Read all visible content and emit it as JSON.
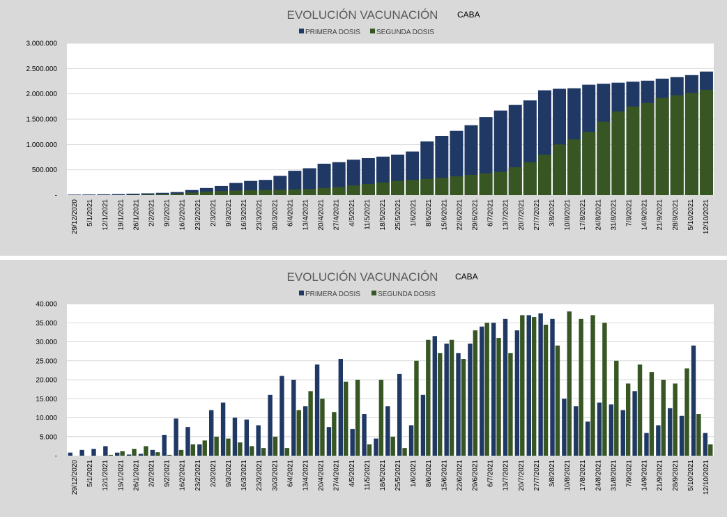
{
  "colors": {
    "primera": "#1f3864",
    "segunda": "#375623",
    "panel_bg": "#d9d9d9",
    "plot_bg": "#ffffff"
  },
  "chart_data": [
    {
      "type": "bar",
      "variant": "cumulative-overlay",
      "title": "EVOLUCIÓN VACUNACIÓN",
      "subtitle": "CABA",
      "legend": [
        "PRIMERA DOSIS",
        "SEGUNDA DOSIS"
      ],
      "legend_position": "top-center",
      "ylim": [
        0,
        3000000
      ],
      "yticks": [
        "-",
        "500.000",
        "1.000.000",
        "1.500.000",
        "2.000.000",
        "2.500.000",
        "3.000.000"
      ],
      "xticks": [
        "29/12/2020",
        "5/1/2021",
        "12/1/2021",
        "19/1/2021",
        "26/1/2021",
        "2/2/2021",
        "9/2/2021",
        "16/2/2021",
        "23/2/2021",
        "2/3/2021",
        "9/3/2021",
        "16/3/2021",
        "23/3/2021",
        "30/3/2021",
        "6/4/2021",
        "13/4/2021",
        "20/4/2021",
        "27/4/2021",
        "4/5/2021",
        "11/5/2021",
        "18/5/2021",
        "25/5/2021",
        "1/6/2021",
        "8/6/2021",
        "15/6/2021",
        "22/6/2021",
        "29/6/2021",
        "6/7/2021",
        "13/7/2021",
        "20/7/2021",
        "27/7/2021",
        "3/8/2021",
        "10/8/2021",
        "17/8/2021",
        "24/8/2021",
        "31/8/2021",
        "7/9/2021",
        "14/9/2021",
        "21/9/2021",
        "28/9/2021",
        "5/10/2021",
        "12/10/2021"
      ],
      "grid": true,
      "series": [
        {
          "name": "PRIMERA DOSIS",
          "values": [
            10000,
            12000,
            15000,
            20000,
            28000,
            35000,
            45000,
            60000,
            100000,
            140000,
            180000,
            240000,
            280000,
            300000,
            380000,
            480000,
            530000,
            620000,
            650000,
            700000,
            730000,
            760000,
            800000,
            860000,
            1060000,
            1170000,
            1270000,
            1380000,
            1540000,
            1670000,
            1780000,
            1870000,
            2070000,
            2100000,
            2110000,
            2180000,
            2200000,
            2220000,
            2240000,
            2260000,
            2300000,
            2330000,
            2370000,
            2440000
          ]
        },
        {
          "name": "SEGUNDA DOSIS",
          "values": [
            0,
            0,
            500,
            1000,
            5000,
            10000,
            20000,
            30000,
            50000,
            70000,
            80000,
            90000,
            95000,
            100000,
            105000,
            110000,
            120000,
            140000,
            160000,
            190000,
            220000,
            250000,
            280000,
            300000,
            320000,
            340000,
            370000,
            400000,
            430000,
            460000,
            550000,
            650000,
            800000,
            1000000,
            1100000,
            1250000,
            1450000,
            1650000,
            1750000,
            1820000,
            1920000,
            1970000,
            2020000,
            2080000
          ]
        }
      ]
    },
    {
      "type": "bar",
      "variant": "daily",
      "title": "EVOLUCIÓN VACUNACIÓN",
      "subtitle": "CABA",
      "legend": [
        "PRIMERA DOSIS",
        "SEGUNDA DOSIS"
      ],
      "legend_position": "top-center",
      "ylim": [
        0,
        40000
      ],
      "yticks": [
        "-",
        "5.000",
        "10.000",
        "15.000",
        "20.000",
        "25.000",
        "30.000",
        "35.000",
        "40.000"
      ],
      "xticks": [
        "29/12/2020",
        "5/1/2021",
        "12/1/2021",
        "19/1/2021",
        "26/1/2021",
        "2/2/2021",
        "9/2/2021",
        "16/2/2021",
        "23/2/2021",
        "2/3/2021",
        "9/3/2021",
        "16/3/2021",
        "23/3/2021",
        "30/3/2021",
        "6/4/2021",
        "13/4/2021",
        "20/4/2021",
        "27/4/2021",
        "4/5/2021",
        "11/5/2021",
        "18/5/2021",
        "25/5/2021",
        "1/6/2021",
        "8/6/2021",
        "15/6/2021",
        "22/6/2021",
        "29/6/2021",
        "6/7/2021",
        "13/7/2021",
        "20/7/2021",
        "27/7/2021",
        "3/8/2021",
        "10/8/2021",
        "17/8/2021",
        "24/8/2021",
        "31/8/2021",
        "7/9/2021",
        "14/9/2021",
        "21/9/2021",
        "28/9/2021",
        "5/10/2021",
        "12/10/2021"
      ],
      "grid": true,
      "series": [
        {
          "name": "PRIMERA DOSIS",
          "values": [
            800,
            1500,
            1800,
            2500,
            800,
            300,
            500,
            1500,
            5500,
            9800,
            7500,
            3000,
            12000,
            14000,
            10000,
            9500,
            8000,
            16000,
            21000,
            20000,
            13000,
            24000,
            7500,
            25500,
            7000,
            11000,
            4500,
            13000,
            21500,
            8000,
            16000,
            31500,
            29500,
            27000,
            29500,
            34000,
            35000,
            36000,
            33000,
            37000,
            37500,
            36000,
            15000,
            13000,
            9000,
            14000,
            13500,
            12000,
            17000,
            6000,
            8000,
            12500,
            10500,
            29000,
            6000
          ]
        },
        {
          "name": "SEGUNDA DOSIS",
          "values": [
            0,
            0,
            0,
            200,
            1200,
            1800,
            2500,
            900,
            200,
            1500,
            3000,
            4000,
            5000,
            4500,
            3500,
            2500,
            2000,
            5000,
            2000,
            12000,
            17000,
            15000,
            11500,
            19500,
            20000,
            3000,
            20000,
            5000,
            2000,
            25000,
            30500,
            27000,
            30500,
            25500,
            33000,
            35000,
            31000,
            27000,
            37000,
            36500,
            34500,
            29000,
            38000,
            36000,
            37000,
            35000,
            25000,
            19000,
            24000,
            22000,
            20000,
            19000,
            23000,
            11000,
            3000
          ]
        }
      ]
    }
  ]
}
